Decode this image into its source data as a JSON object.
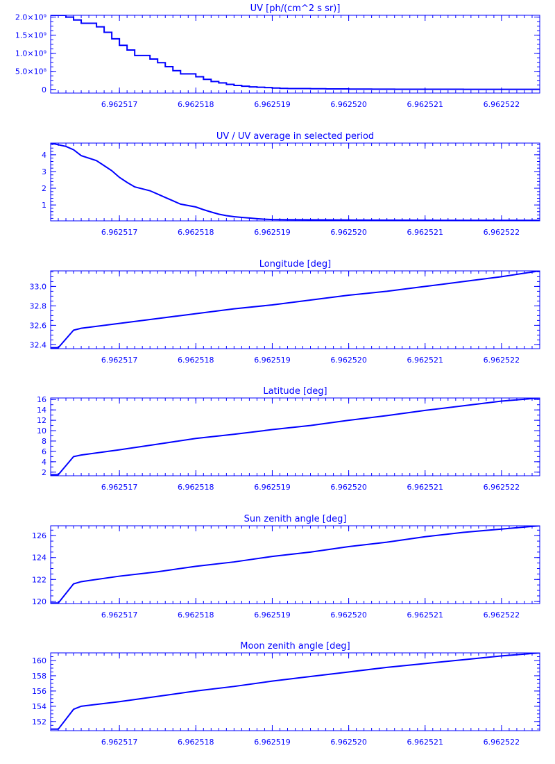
{
  "chart_data": [
    {
      "type": "line",
      "title": "UV [ph/(cm^2 s sr)]",
      "step": true,
      "xlim": [
        6.9625161,
        6.9625225
      ],
      "ylim": [
        -100000000.0,
        2050000000.0
      ],
      "xticks": [
        6.962517,
        6.962518,
        6.962519,
        6.96252,
        6.962521,
        6.962522
      ],
      "xtick_labels": [
        "6.962517",
        "6.962518",
        "6.962519",
        "6.962520",
        "6.962521",
        "6.962522"
      ],
      "yticks": [
        0,
        500000000.0,
        1000000000.0,
        1500000000.0,
        2000000000.0
      ],
      "ytick_labels": [
        "0",
        "5.0×10⁸",
        "1.0×10⁹",
        "1.5×10⁹",
        "2.0×10⁹"
      ],
      "yminor": 4,
      "series": [
        {
          "x": [
            6.9625161,
            6.9625163,
            6.9625164,
            6.9625165,
            6.9625167,
            6.9625168,
            6.9625169,
            6.962517,
            6.9625171,
            6.9625172,
            6.9625174,
            6.9625175,
            6.9625176,
            6.9625177,
            6.9625178,
            6.962518,
            6.9625181,
            6.9625182,
            6.9625183,
            6.9625184,
            6.9625185,
            6.9625186,
            6.9625187,
            6.9625188,
            6.9625189,
            6.962519,
            6.9625191,
            6.9625192,
            6.9625195,
            6.9625197,
            6.96252,
            6.9625203,
            6.9625206,
            6.962521,
            6.9625215,
            6.962522,
            6.9625225
          ],
          "y": [
            2050000000.0,
            2000000000.0,
            1920000000.0,
            1830000000.0,
            1730000000.0,
            1580000000.0,
            1400000000.0,
            1220000000.0,
            1090000000.0,
            940000000.0,
            840000000.0,
            740000000.0,
            630000000.0,
            520000000.0,
            430000000.0,
            350000000.0,
            280000000.0,
            220000000.0,
            180000000.0,
            140000000.0,
            110000000.0,
            90000000.0,
            70000000.0,
            60000000.0,
            50000000.0,
            40000000.0,
            30000000.0,
            25000000.0,
            20000000.0,
            15000000.0,
            10000000.0,
            8000000.0,
            6000000.0,
            5000000.0,
            4000000.0,
            3000000.0,
            3000000.0
          ]
        }
      ]
    },
    {
      "type": "line",
      "title": "UV / UV average in selected period",
      "xlim": [
        6.9625161,
        6.9625225
      ],
      "ylim": [
        0.05,
        4.7
      ],
      "xticks": [
        6.962517,
        6.962518,
        6.962519,
        6.96252,
        6.962521,
        6.962522
      ],
      "xtick_labels": [
        "6.962517",
        "6.962518",
        "6.962519",
        "6.962520",
        "6.962521",
        "6.962522"
      ],
      "yticks": [
        1,
        2,
        3,
        4
      ],
      "ytick_labels": [
        "1",
        "2",
        "3",
        "4"
      ],
      "yminor": 5,
      "series": [
        {
          "x": [
            6.9625161,
            6.9625163,
            6.9625164,
            6.9625165,
            6.9625167,
            6.9625168,
            6.9625169,
            6.962517,
            6.9625171,
            6.9625172,
            6.9625174,
            6.9625175,
            6.9625176,
            6.9625177,
            6.9625178,
            6.962518,
            6.9625181,
            6.9625182,
            6.9625183,
            6.9625184,
            6.9625185,
            6.9625186,
            6.9625187,
            6.9625188,
            6.9625189,
            6.962519,
            6.9625192,
            6.9625195,
            6.96252,
            6.9625205,
            6.962521,
            6.9625215,
            6.962522,
            6.9625225
          ],
          "y": [
            4.7,
            4.5,
            4.3,
            3.95,
            3.65,
            3.35,
            3.05,
            2.65,
            2.35,
            2.08,
            1.85,
            1.65,
            1.45,
            1.25,
            1.05,
            0.88,
            0.72,
            0.58,
            0.45,
            0.36,
            0.3,
            0.26,
            0.22,
            0.18,
            0.15,
            0.13,
            0.12,
            0.11,
            0.1,
            0.09,
            0.085,
            0.08,
            0.08,
            0.08
          ]
        }
      ]
    },
    {
      "type": "line",
      "title": "Longitude [deg]",
      "xlim": [
        6.9625161,
        6.9625225
      ],
      "ylim": [
        32.36,
        33.16
      ],
      "xticks": [
        6.962517,
        6.962518,
        6.962519,
        6.96252,
        6.962521,
        6.962522
      ],
      "xtick_labels": [
        "6.962517",
        "6.962518",
        "6.962519",
        "6.962520",
        "6.962521",
        "6.962522"
      ],
      "yticks": [
        32.4,
        32.6,
        32.8,
        33.0
      ],
      "ytick_labels": [
        "32.4",
        "32.6",
        "32.8",
        "33.0"
      ],
      "yminor": 4,
      "series": [
        {
          "x": [
            6.9625161,
            6.9625162,
            6.9625164,
            6.9625165,
            6.962517,
            6.9625175,
            6.962518,
            6.9625185,
            6.962519,
            6.9625195,
            6.96252,
            6.9625205,
            6.962521,
            6.9625215,
            6.962522,
            6.9625225
          ],
          "y": [
            32.37,
            32.37,
            32.55,
            32.57,
            32.62,
            32.67,
            32.72,
            32.77,
            32.81,
            32.86,
            32.91,
            32.95,
            33.0,
            33.05,
            33.1,
            33.16
          ]
        }
      ]
    },
    {
      "type": "line",
      "title": "Latitude [deg]",
      "xlim": [
        6.9625161,
        6.9625225
      ],
      "ylim": [
        1.3,
        16.3
      ],
      "xticks": [
        6.962517,
        6.962518,
        6.962519,
        6.96252,
        6.962521,
        6.962522
      ],
      "xtick_labels": [
        "6.962517",
        "6.962518",
        "6.962519",
        "6.962520",
        "6.962521",
        "6.962522"
      ],
      "yticks": [
        2,
        4,
        6,
        8,
        10,
        12,
        14,
        16
      ],
      "ytick_labels": [
        "2",
        "4",
        "6",
        "8",
        "10",
        "12",
        "14",
        "16"
      ],
      "yminor": 2,
      "series": [
        {
          "x": [
            6.9625161,
            6.9625162,
            6.9625164,
            6.9625165,
            6.962517,
            6.9625175,
            6.962518,
            6.9625185,
            6.962519,
            6.9625195,
            6.96252,
            6.9625205,
            6.962521,
            6.9625215,
            6.962522,
            6.9625225
          ],
          "y": [
            1.5,
            1.5,
            5.0,
            5.3,
            6.3,
            7.4,
            8.5,
            9.3,
            10.2,
            11.0,
            12.0,
            12.9,
            13.9,
            14.8,
            15.7,
            16.3
          ]
        }
      ]
    },
    {
      "type": "line",
      "title": "Sun zenith angle [deg]",
      "xlim": [
        6.9625161,
        6.9625225
      ],
      "ylim": [
        119.8,
        126.9
      ],
      "xticks": [
        6.962517,
        6.962518,
        6.962519,
        6.96252,
        6.962521,
        6.962522
      ],
      "xtick_labels": [
        "6.962517",
        "6.962518",
        "6.962519",
        "6.962520",
        "6.962521",
        "6.962522"
      ],
      "yticks": [
        120,
        122,
        124,
        126
      ],
      "ytick_labels": [
        "120",
        "122",
        "124",
        "126"
      ],
      "yminor": 4,
      "series": [
        {
          "x": [
            6.9625161,
            6.9625162,
            6.9625164,
            6.9625165,
            6.962517,
            6.9625175,
            6.962518,
            6.9625185,
            6.962519,
            6.9625195,
            6.96252,
            6.9625205,
            6.962521,
            6.9625215,
            6.962522,
            6.9625225
          ],
          "y": [
            119.85,
            119.85,
            121.6,
            121.8,
            122.3,
            122.7,
            123.2,
            123.6,
            124.1,
            124.5,
            125.0,
            125.4,
            125.9,
            126.3,
            126.6,
            126.9
          ]
        }
      ]
    },
    {
      "type": "line",
      "title": "Moon zenith angle [deg]",
      "xlim": [
        6.9625161,
        6.9625225
      ],
      "ylim": [
        150.8,
        161.0
      ],
      "xticks": [
        6.962517,
        6.962518,
        6.962519,
        6.96252,
        6.962521,
        6.962522
      ],
      "xtick_labels": [
        "6.962517",
        "6.962518",
        "6.962519",
        "6.962520",
        "6.962521",
        "6.962522"
      ],
      "yticks": [
        152,
        154,
        156,
        158,
        160
      ],
      "ytick_labels": [
        "152",
        "154",
        "156",
        "158",
        "160"
      ],
      "yminor": 4,
      "series": [
        {
          "x": [
            6.9625161,
            6.9625162,
            6.9625164,
            6.9625165,
            6.962517,
            6.9625175,
            6.962518,
            6.9625185,
            6.962519,
            6.9625195,
            6.96252,
            6.9625205,
            6.962521,
            6.9625215,
            6.962522,
            6.9625225
          ],
          "y": [
            151.0,
            151.0,
            153.6,
            154.0,
            154.6,
            155.3,
            156.0,
            156.6,
            157.3,
            157.9,
            158.5,
            159.1,
            159.6,
            160.1,
            160.6,
            161.0
          ]
        }
      ]
    }
  ]
}
